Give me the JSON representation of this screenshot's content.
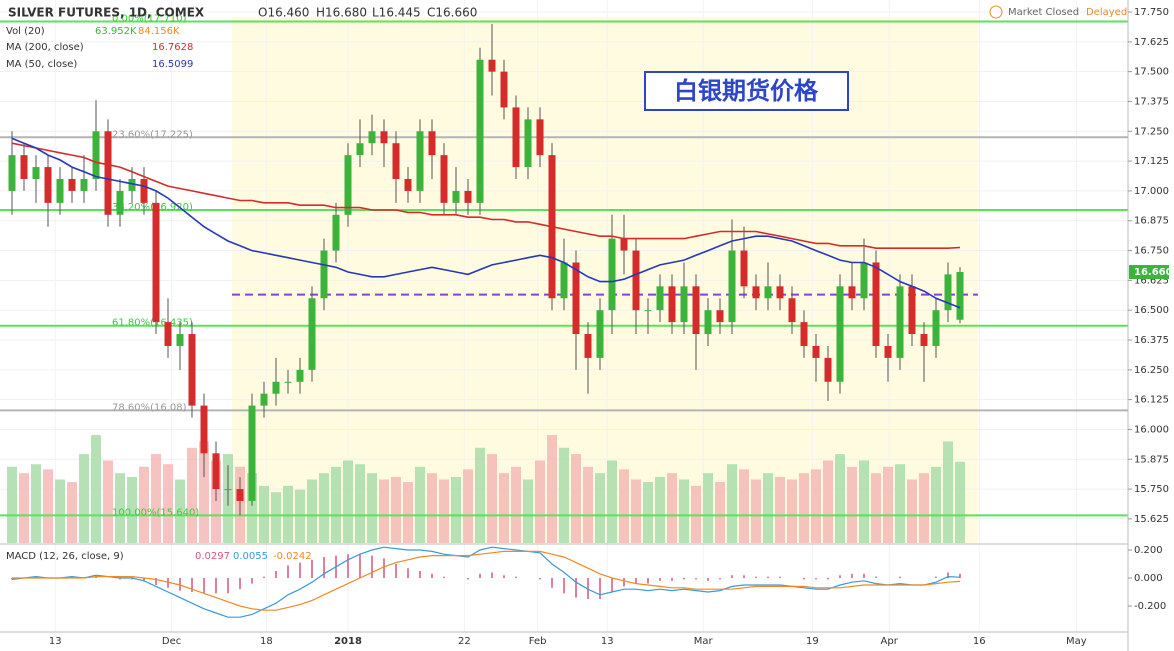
{
  "chart_data": [
    {
      "type": "candlestick",
      "title": "SILVER FUTURES, 1D, COMEX",
      "ohlc_labels": [
        "O16.460",
        "H16.680",
        "L16.445",
        "C16.660"
      ],
      "status": "Market Closed",
      "feed": "Delayed",
      "annotation": "白银期货价格",
      "open": [
        17.0,
        17.15,
        17.05,
        17.1,
        16.95,
        17.05,
        17.0,
        17.05,
        17.25,
        16.9,
        17.0,
        17.05,
        16.95,
        16.45,
        16.35,
        16.4,
        16.1,
        15.9,
        15.75,
        15.75,
        15.7,
        16.1,
        16.15,
        16.2,
        16.2,
        16.25,
        16.55,
        16.75,
        16.9,
        17.15,
        17.2,
        17.25,
        17.2,
        17.05,
        17.0,
        17.25,
        17.15,
        16.95,
        17.0,
        16.95,
        17.55,
        17.5,
        17.35,
        17.1,
        17.3,
        17.15,
        16.55,
        16.7,
        16.4,
        16.3,
        16.5,
        16.8,
        16.75,
        16.5,
        16.5,
        16.6,
        16.45,
        16.6,
        16.4,
        16.5,
        16.45,
        16.75,
        16.6,
        16.55,
        16.6,
        16.55,
        16.45,
        16.35,
        16.3,
        16.2,
        16.6,
        16.55,
        16.7,
        16.35,
        16.3,
        16.6,
        16.4,
        16.35,
        16.5,
        16.46
      ],
      "high": [
        17.25,
        17.2,
        17.15,
        17.15,
        17.1,
        17.1,
        17.15,
        17.38,
        17.3,
        17.05,
        17.1,
        17.1,
        17.0,
        16.55,
        16.45,
        16.45,
        16.15,
        15.95,
        15.85,
        15.8,
        16.15,
        16.2,
        16.3,
        16.25,
        16.3,
        16.6,
        16.8,
        16.95,
        17.2,
        17.3,
        17.32,
        17.3,
        17.25,
        17.1,
        17.3,
        17.3,
        17.2,
        17.1,
        17.05,
        17.6,
        17.7,
        17.55,
        17.4,
        17.35,
        17.35,
        17.2,
        16.8,
        16.75,
        16.45,
        16.55,
        16.9,
        16.9,
        16.8,
        16.55,
        16.65,
        16.65,
        16.7,
        16.65,
        16.55,
        16.55,
        16.88,
        16.85,
        16.65,
        16.7,
        16.65,
        16.6,
        16.5,
        16.4,
        16.35,
        16.65,
        16.7,
        16.8,
        16.75,
        16.4,
        16.65,
        16.65,
        16.45,
        16.55,
        16.7,
        16.68
      ],
      "low": [
        16.9,
        17.0,
        16.95,
        16.85,
        16.9,
        16.95,
        16.95,
        17.0,
        16.85,
        16.85,
        16.95,
        16.9,
        16.4,
        16.3,
        16.25,
        16.05,
        15.8,
        15.7,
        15.68,
        15.64,
        15.68,
        16.05,
        16.1,
        16.15,
        16.15,
        16.2,
        16.5,
        16.7,
        16.85,
        17.1,
        17.15,
        17.1,
        16.95,
        16.95,
        16.95,
        17.05,
        16.9,
        16.9,
        16.9,
        16.9,
        17.4,
        17.3,
        17.05,
        17.05,
        17.1,
        16.5,
        16.5,
        16.25,
        16.15,
        16.25,
        16.4,
        16.65,
        16.4,
        16.4,
        16.45,
        16.4,
        16.4,
        16.25,
        16.35,
        16.4,
        16.4,
        16.55,
        16.5,
        16.5,
        16.5,
        16.4,
        16.3,
        16.2,
        16.12,
        16.15,
        16.5,
        16.5,
        16.3,
        16.2,
        16.25,
        16.35,
        16.2,
        16.3,
        16.45,
        16.445
      ],
      "close": [
        17.15,
        17.05,
        17.1,
        16.95,
        17.05,
        17.0,
        17.05,
        17.25,
        16.9,
        17.0,
        17.05,
        16.95,
        16.45,
        16.35,
        16.4,
        16.1,
        15.9,
        15.75,
        15.75,
        15.7,
        16.1,
        16.15,
        16.2,
        16.2,
        16.25,
        16.55,
        16.75,
        16.9,
        17.15,
        17.2,
        17.25,
        17.2,
        17.05,
        17.0,
        17.25,
        17.15,
        16.95,
        17.0,
        16.95,
        17.55,
        17.5,
        17.35,
        17.1,
        17.3,
        17.15,
        16.55,
        16.7,
        16.4,
        16.3,
        16.5,
        16.8,
        16.75,
        16.5,
        16.5,
        16.6,
        16.45,
        16.6,
        16.4,
        16.5,
        16.45,
        16.75,
        16.6,
        16.55,
        16.6,
        16.55,
        16.45,
        16.35,
        16.3,
        16.2,
        16.6,
        16.55,
        16.7,
        16.35,
        16.3,
        16.6,
        16.4,
        16.35,
        16.5,
        16.65,
        16.66
      ],
      "up_color": "#3cb43c",
      "down_color": "#d62b2b",
      "last_price": {
        "value": 16.66,
        "label": "16.660"
      },
      "volume": {
        "name": "Vol (20)",
        "legend_values": [
          "63.952K",
          "84.156K"
        ],
        "legend_colors": [
          "#3cb43c",
          "#f08a24"
        ],
        "up_color": "#a9dca9",
        "down_color": "#f5b9b5",
        "values": [
          60,
          55,
          62,
          58,
          50,
          48,
          70,
          85,
          65,
          55,
          52,
          60,
          70,
          62,
          50,
          75,
          80,
          65,
          70,
          60,
          55,
          45,
          40,
          45,
          42,
          50,
          55,
          60,
          65,
          62,
          55,
          50,
          52,
          48,
          60,
          55,
          50,
          52,
          58,
          75,
          70,
          55,
          60,
          50,
          65,
          85,
          75,
          70,
          60,
          55,
          65,
          58,
          50,
          48,
          52,
          55,
          50,
          45,
          55,
          48,
          62,
          58,
          50,
          55,
          52,
          50,
          55,
          58,
          65,
          70,
          60,
          65,
          55,
          60,
          62,
          50,
          55,
          60,
          80,
          63.952
        ]
      },
      "lines": [
        {
          "name": "MA (200, close)",
          "color": "#d62b2b",
          "values": [
            17.2,
            17.19,
            17.18,
            17.17,
            17.16,
            17.15,
            17.14,
            17.12,
            17.11,
            17.1,
            17.08,
            17.06,
            17.04,
            17.02,
            17.01,
            17.0,
            16.99,
            16.98,
            16.97,
            16.96,
            16.96,
            16.95,
            16.95,
            16.95,
            16.94,
            16.94,
            16.94,
            16.93,
            16.93,
            16.93,
            16.92,
            16.92,
            16.92,
            16.91,
            16.91,
            16.9,
            16.9,
            16.9,
            16.89,
            16.89,
            16.88,
            16.88,
            16.87,
            16.87,
            16.86,
            16.85,
            16.84,
            16.83,
            16.82,
            16.81,
            16.81,
            16.8,
            16.8,
            16.8,
            16.8,
            16.8,
            16.8,
            16.81,
            16.82,
            16.83,
            16.83,
            16.83,
            16.83,
            16.82,
            16.81,
            16.8,
            16.79,
            16.78,
            16.78,
            16.77,
            16.77,
            16.77,
            16.76,
            16.76,
            16.76,
            16.76,
            16.76,
            16.76,
            16.76,
            16.7628
          ]
        },
        {
          "name": "MA (50, close)",
          "color": "#2638b8",
          "values": [
            17.22,
            17.2,
            17.18,
            17.15,
            17.13,
            17.1,
            17.08,
            17.06,
            17.05,
            17.04,
            17.03,
            17.02,
            17.0,
            16.97,
            16.93,
            16.89,
            16.85,
            16.82,
            16.79,
            16.77,
            16.75,
            16.74,
            16.73,
            16.72,
            16.71,
            16.7,
            16.69,
            16.68,
            16.66,
            16.65,
            16.64,
            16.64,
            16.65,
            16.66,
            16.67,
            16.68,
            16.67,
            16.66,
            16.65,
            16.67,
            16.69,
            16.7,
            16.71,
            16.72,
            16.73,
            16.72,
            16.7,
            16.67,
            16.64,
            16.62,
            16.62,
            16.63,
            16.65,
            16.67,
            16.69,
            16.7,
            16.71,
            16.73,
            16.75,
            16.77,
            16.79,
            16.8,
            16.81,
            16.81,
            16.8,
            16.79,
            16.77,
            16.75,
            16.73,
            16.71,
            16.7,
            16.7,
            16.68,
            16.65,
            16.62,
            16.6,
            16.58,
            16.55,
            16.53,
            16.5099
          ]
        }
      ],
      "levels": [
        {
          "value": 17.71,
          "label": "0.00%(17.710)",
          "color": "#5ee05e"
        },
        {
          "value": 17.225,
          "label": "23.60%(17.225)",
          "color": "#b4b4b4"
        },
        {
          "value": 16.92,
          "label": "38.20%(16.920)",
          "color": "#5ee05e"
        },
        {
          "value": 16.435,
          "label": "61.80%(16.435)",
          "color": "#5ee05e"
        },
        {
          "value": 16.08,
          "label": "78.60%(16.08)",
          "color": "#b4b4b4"
        },
        {
          "value": 15.64,
          "label": "100.00%(15.640)",
          "color": "#5ee05e"
        }
      ],
      "reference_line": {
        "value": 16.565,
        "color": "#8a3fd6"
      },
      "xlim": [
        -1,
        93
      ],
      "xticks": [
        {
          "value": 3.6,
          "label": "13"
        },
        {
          "value": 13.3,
          "label": "Dec"
        },
        {
          "value": 21.2,
          "label": "18"
        },
        {
          "value": 28,
          "label": "2018"
        },
        {
          "value": 37.7,
          "label": "22"
        },
        {
          "value": 43.8,
          "label": "Feb"
        },
        {
          "value": 49.6,
          "label": "13"
        },
        {
          "value": 57.6,
          "label": "Mar"
        },
        {
          "value": 66.7,
          "label": "19"
        },
        {
          "value": 73.1,
          "label": "Apr"
        },
        {
          "value": 80.6,
          "label": "16"
        },
        {
          "value": 88.7,
          "label": "May"
        }
      ],
      "ylim": [
        15.524,
        17.792
      ],
      "yticks": [
        {
          "value": 15.625,
          "label": "15.625"
        },
        {
          "value": 15.75,
          "label": "15.750"
        },
        {
          "value": 15.875,
          "label": "15.875"
        },
        {
          "value": 16,
          "label": "16.000"
        },
        {
          "value": 16.125,
          "label": "16.125"
        },
        {
          "value": 16.25,
          "label": "16.250"
        },
        {
          "value": 16.375,
          "label": "16.375"
        },
        {
          "value": 16.5,
          "label": "16.500"
        },
        {
          "value": 16.625,
          "label": "16.625"
        },
        {
          "value": 16.75,
          "label": "16.750"
        },
        {
          "value": 16.875,
          "label": "16.875"
        },
        {
          "value": 17,
          "label": "17.000"
        },
        {
          "value": 17.125,
          "label": "17.125"
        },
        {
          "value": 17.25,
          "label": "17.250"
        },
        {
          "value": 17.375,
          "label": "17.375"
        },
        {
          "value": 17.5,
          "label": "17.500"
        },
        {
          "value": 17.625,
          "label": "17.625"
        },
        {
          "value": 17.75,
          "label": "17.750"
        }
      ]
    },
    {
      "type": "macd",
      "title": "MACD (12, 26, close, 9)",
      "series": [
        {
          "name": "histogram",
          "color": "#d8547a",
          "values": [
            -0.01,
            0,
            0.01,
            0,
            0,
            0.01,
            0,
            0.01,
            0,
            -0.01,
            -0.01,
            -0.02,
            -0.05,
            -0.07,
            -0.09,
            -0.1,
            -0.11,
            -0.11,
            -0.11,
            -0.08,
            -0.04,
            0.01,
            0.05,
            0.09,
            0.11,
            0.13,
            0.15,
            0.16,
            0.17,
            0.17,
            0.16,
            0.14,
            0.1,
            0.07,
            0.05,
            0.03,
            0.01,
            0,
            -0.01,
            0.03,
            0.04,
            0.02,
            0.01,
            0,
            -0.01,
            -0.07,
            -0.11,
            -0.14,
            -0.15,
            -0.15,
            -0.1,
            -0.06,
            -0.04,
            -0.04,
            -0.02,
            -0.02,
            -0.01,
            -0.01,
            -0.02,
            -0.01,
            0.02,
            0.02,
            0.01,
            0.01,
            0.01,
            0,
            -0.01,
            -0.01,
            -0.01,
            0.02,
            0.03,
            0.03,
            0.01,
            0,
            0.01,
            0,
            0,
            0.01,
            0.04,
            0.0297
          ]
        },
        {
          "name": "macd",
          "color": "#3a9ad9",
          "values": [
            -0.01,
            0.0,
            0.01,
            0.0,
            0.0,
            0.01,
            0.0,
            0.02,
            0.01,
            0.0,
            0.0,
            -0.02,
            -0.06,
            -0.1,
            -0.14,
            -0.18,
            -0.22,
            -0.25,
            -0.28,
            -0.28,
            -0.26,
            -0.22,
            -0.18,
            -0.12,
            -0.08,
            -0.03,
            0.03,
            0.08,
            0.13,
            0.17,
            0.2,
            0.22,
            0.21,
            0.2,
            0.2,
            0.19,
            0.17,
            0.16,
            0.15,
            0.2,
            0.22,
            0.21,
            0.2,
            0.19,
            0.18,
            0.1,
            0.04,
            -0.03,
            -0.08,
            -0.12,
            -0.1,
            -0.08,
            -0.08,
            -0.09,
            -0.08,
            -0.09,
            -0.08,
            -0.09,
            -0.1,
            -0.09,
            -0.06,
            -0.05,
            -0.05,
            -0.05,
            -0.05,
            -0.06,
            -0.07,
            -0.08,
            -0.08,
            -0.05,
            -0.03,
            -0.02,
            -0.04,
            -0.05,
            -0.04,
            -0.05,
            -0.05,
            -0.03,
            0.01,
            0.0055
          ]
        },
        {
          "name": "signal",
          "color": "#f08a24",
          "values": [
            0.0,
            0.0,
            0.0,
            0.0,
            0.0,
            0.0,
            0.0,
            0.01,
            0.01,
            0.01,
            0.01,
            0.0,
            -0.01,
            -0.03,
            -0.05,
            -0.08,
            -0.11,
            -0.14,
            -0.17,
            -0.2,
            -0.22,
            -0.23,
            -0.23,
            -0.21,
            -0.19,
            -0.16,
            -0.12,
            -0.08,
            -0.04,
            0.0,
            0.04,
            0.08,
            0.11,
            0.13,
            0.15,
            0.16,
            0.16,
            0.16,
            0.16,
            0.17,
            0.18,
            0.19,
            0.19,
            0.19,
            0.19,
            0.17,
            0.15,
            0.11,
            0.07,
            0.03,
            0.0,
            -0.02,
            -0.04,
            -0.05,
            -0.06,
            -0.07,
            -0.07,
            -0.08,
            -0.08,
            -0.08,
            -0.08,
            -0.07,
            -0.06,
            -0.06,
            -0.06,
            -0.06,
            -0.06,
            -0.07,
            -0.07,
            -0.07,
            -0.06,
            -0.05,
            -0.05,
            -0.05,
            -0.05,
            -0.05,
            -0.05,
            -0.04,
            -0.03,
            -0.0242
          ]
        }
      ],
      "ylim": [
        -0.386,
        0.236
      ],
      "yticks": [
        {
          "value": 0.2,
          "label": "0.200"
        },
        {
          "value": 0,
          "label": "0.000"
        },
        {
          "value": -0.2,
          "label": "-0.200"
        }
      ]
    }
  ]
}
